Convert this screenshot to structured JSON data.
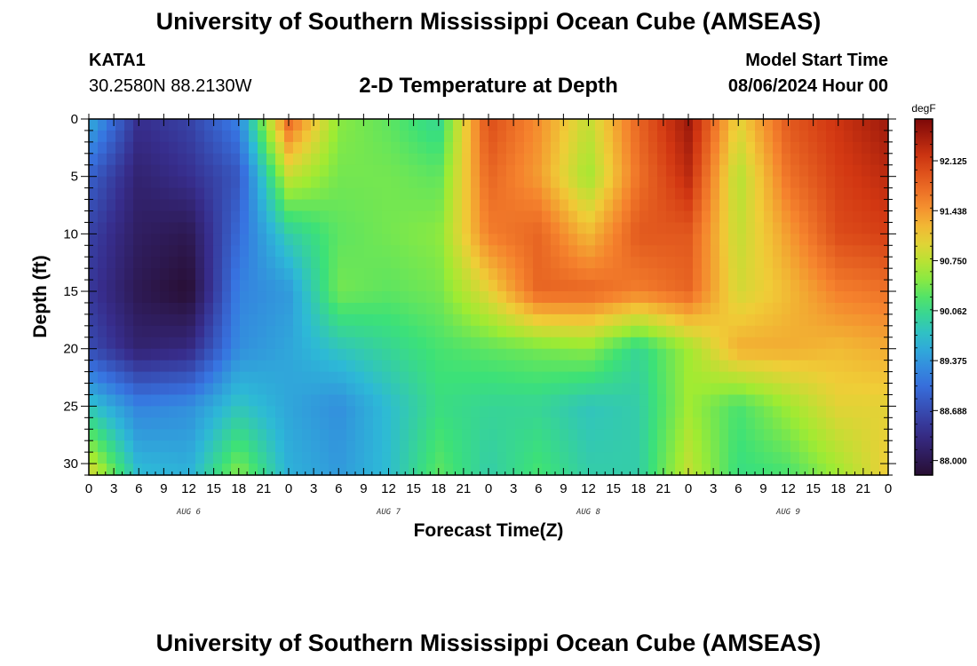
{
  "header": {
    "title": "University of Southern Mississippi Ocean Cube (AMSEAS)",
    "station": "KATA1",
    "location": "30.2580N  88.2130W",
    "subtitle": "2-D Temperature at Depth",
    "model_label": "Model Start Time",
    "model_time": "08/06/2024 Hour 00"
  },
  "footer": {
    "title": "University of Southern Mississippi Ocean Cube (AMSEAS)"
  },
  "chart_data": {
    "type": "heatmap",
    "title": "2-D Temperature at Depth",
    "xlabel": "Forecast Time(Z)",
    "ylabel": "Depth (ft)",
    "x_range_hours": [
      0,
      96
    ],
    "y_range_ft": [
      0,
      31
    ],
    "x_tick_labels": [
      "0",
      "3",
      "6",
      "9",
      "12",
      "15",
      "18",
      "21",
      "0",
      "3",
      "6",
      "9",
      "12",
      "15",
      "18",
      "21",
      "0",
      "3",
      "6",
      "9",
      "12",
      "15",
      "18",
      "21",
      "0",
      "3",
      "6",
      "9",
      "12",
      "15",
      "18",
      "21",
      "0"
    ],
    "y_ticks": [
      0,
      5,
      10,
      15,
      20,
      25,
      30
    ],
    "y_tick_labels": [
      "0",
      "5",
      "10",
      "15",
      "20",
      "25",
      "30"
    ],
    "day_labels": [
      {
        "label": "AUG 6",
        "hour": 12
      },
      {
        "label": "AUG 7",
        "hour": 36
      },
      {
        "label": "AUG 8",
        "hour": 60
      },
      {
        "label": "AUG 9",
        "hour": 84
      }
    ],
    "colorbar": {
      "unit": "degF",
      "min": 87.8,
      "max": 92.7,
      "tick_values": [
        88.0,
        88.688,
        89.375,
        90.062,
        90.75,
        91.438,
        92.125
      ],
      "tick_labels": [
        "88.000",
        "88.688",
        "89.375",
        "90.062",
        "90.750",
        "91.438",
        "92.125"
      ]
    },
    "grid_depths_ft": [
      0,
      5,
      10,
      15,
      20,
      25,
      31
    ],
    "grid_hours": [
      0,
      6,
      12,
      18,
      24,
      30,
      36,
      42,
      48,
      54,
      60,
      66,
      72,
      78,
      84,
      90,
      96
    ],
    "temperature_degF": [
      [
        89.6,
        88.4,
        88.6,
        89.2,
        91.8,
        90.5,
        90.3,
        90.0,
        92.0,
        91.5,
        90.8,
        91.8,
        92.5,
        91.0,
        91.9,
        92.2,
        92.5
      ],
      [
        88.9,
        88.2,
        88.4,
        88.8,
        90.8,
        90.4,
        90.4,
        90.3,
        91.8,
        91.4,
        90.6,
        91.7,
        92.3,
        90.7,
        91.7,
        92.1,
        92.3
      ],
      [
        88.6,
        88.1,
        88.0,
        89.0,
        89.9,
        90.3,
        90.4,
        90.5,
        91.6,
        91.8,
        91.2,
        91.9,
        91.9,
        90.8,
        91.4,
        92.0,
        92.1
      ],
      [
        88.5,
        88.0,
        87.8,
        89.2,
        89.4,
        90.4,
        90.3,
        90.4,
        91.0,
        91.8,
        91.8,
        91.6,
        91.8,
        90.9,
        91.2,
        91.6,
        91.7
      ],
      [
        88.7,
        88.2,
        88.3,
        89.3,
        89.5,
        89.8,
        90.0,
        90.2,
        90.3,
        90.4,
        90.5,
        90.0,
        90.6,
        91.3,
        91.3,
        91.2,
        91.3
      ],
      [
        89.8,
        89.2,
        89.3,
        89.8,
        89.5,
        89.3,
        89.7,
        90.1,
        90.0,
        90.0,
        89.8,
        89.9,
        90.6,
        90.2,
        90.6,
        91.0,
        91.0
      ],
      [
        91.0,
        89.7,
        89.6,
        90.5,
        89.6,
        89.4,
        89.7,
        90.3,
        89.9,
        90.2,
        89.9,
        89.9,
        90.8,
        90.1,
        90.2,
        90.6,
        91.1
      ]
    ]
  }
}
